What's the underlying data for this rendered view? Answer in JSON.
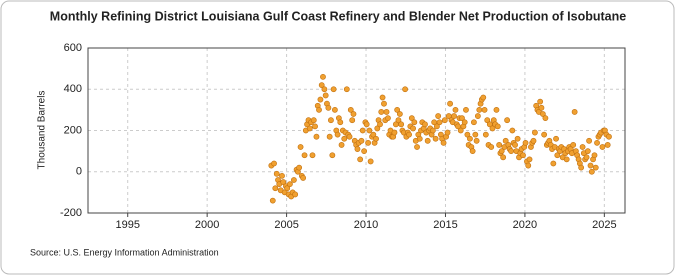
{
  "chart_data": {
    "type": "scatter",
    "title": "Monthly Refining District Louisiana Gulf Coast Refinery and Blender Net Production of Isobutane",
    "ylabel": "Thousand Barrels",
    "source": "Source: U.S. Energy Information Administration",
    "color": "#f0a030",
    "xlim": [
      1992.5,
      2026.3
    ],
    "xticks": [
      1995,
      2000,
      2005,
      2010,
      2015,
      2020,
      2025
    ],
    "ylim": [
      -200,
      600
    ],
    "yticks": [
      -200,
      0,
      200,
      400,
      600
    ],
    "grid": true,
    "x": [
      2004.04,
      2004.13,
      2004.21,
      2004.29,
      2004.38,
      2004.46,
      2004.54,
      2004.63,
      2004.71,
      2004.79,
      2004.88,
      2004.96,
      2005.04,
      2005.13,
      2005.21,
      2005.29,
      2005.38,
      2005.46,
      2005.54,
      2005.63,
      2005.71,
      2005.79,
      2005.88,
      2005.96,
      2006.04,
      2006.13,
      2006.21,
      2006.29,
      2006.38,
      2006.46,
      2006.54,
      2006.63,
      2006.71,
      2006.79,
      2006.88,
      2006.96,
      2007.04,
      2007.13,
      2007.21,
      2007.29,
      2007.38,
      2007.46,
      2007.54,
      2007.63,
      2007.71,
      2007.79,
      2007.88,
      2007.96,
      2008.04,
      2008.13,
      2008.21,
      2008.29,
      2008.38,
      2008.46,
      2008.54,
      2008.63,
      2008.71,
      2008.79,
      2008.88,
      2008.96,
      2009.04,
      2009.13,
      2009.21,
      2009.29,
      2009.38,
      2009.46,
      2009.54,
      2009.63,
      2009.71,
      2009.79,
      2009.88,
      2009.96,
      2010.04,
      2010.13,
      2010.21,
      2010.29,
      2010.38,
      2010.46,
      2010.54,
      2010.63,
      2010.71,
      2010.79,
      2010.88,
      2010.96,
      2011.04,
      2011.13,
      2011.21,
      2011.29,
      2011.38,
      2011.46,
      2011.54,
      2011.63,
      2011.71,
      2011.79,
      2011.88,
      2011.96,
      2012.04,
      2012.13,
      2012.21,
      2012.29,
      2012.38,
      2012.46,
      2012.54,
      2012.63,
      2012.71,
      2012.79,
      2012.88,
      2012.96,
      2013.04,
      2013.13,
      2013.21,
      2013.29,
      2013.38,
      2013.46,
      2013.54,
      2013.63,
      2013.71,
      2013.79,
      2013.88,
      2013.96,
      2014.04,
      2014.13,
      2014.21,
      2014.29,
      2014.38,
      2014.46,
      2014.54,
      2014.63,
      2014.71,
      2014.79,
      2014.88,
      2014.96,
      2015.04,
      2015.13,
      2015.21,
      2015.29,
      2015.38,
      2015.46,
      2015.54,
      2015.63,
      2015.71,
      2015.79,
      2015.88,
      2015.96,
      2016.04,
      2016.13,
      2016.21,
      2016.29,
      2016.38,
      2016.46,
      2016.54,
      2016.63,
      2016.71,
      2016.79,
      2016.88,
      2016.96,
      2017.04,
      2017.13,
      2017.21,
      2017.29,
      2017.38,
      2017.46,
      2017.54,
      2017.63,
      2017.71,
      2017.79,
      2017.88,
      2017.96,
      2018.04,
      2018.13,
      2018.21,
      2018.29,
      2018.38,
      2018.46,
      2018.54,
      2018.63,
      2018.71,
      2018.79,
      2018.88,
      2018.96,
      2019.04,
      2019.13,
      2019.21,
      2019.29,
      2019.38,
      2019.46,
      2019.54,
      2019.63,
      2019.71,
      2019.79,
      2019.88,
      2019.96,
      2020.04,
      2020.13,
      2020.21,
      2020.29,
      2020.38,
      2020.46,
      2020.54,
      2020.63,
      2020.71,
      2020.79,
      2020.88,
      2020.96,
      2021.04,
      2021.13,
      2021.21,
      2021.29,
      2021.38,
      2021.46,
      2021.54,
      2021.63,
      2021.71,
      2021.79,
      2021.88,
      2021.96,
      2022.04,
      2022.13,
      2022.21,
      2022.29,
      2022.38,
      2022.46,
      2022.54,
      2022.63,
      2022.71,
      2022.79,
      2022.88,
      2022.96,
      2023.04,
      2023.13,
      2023.21,
      2023.29,
      2023.38,
      2023.46,
      2023.54,
      2023.63,
      2023.71,
      2023.79,
      2023.88,
      2023.96,
      2024.04,
      2024.13,
      2024.21,
      2024.29,
      2024.38,
      2024.46,
      2024.54,
      2024.63,
      2024.71,
      2024.79,
      2024.88,
      2024.96,
      2025.04,
      2025.13,
      2025.21,
      2025.29
    ],
    "values": [
      30,
      -140,
      40,
      -80,
      -10,
      -40,
      -60,
      -90,
      -20,
      -50,
      -100,
      -70,
      -80,
      -110,
      -60,
      -120,
      -100,
      -40,
      -110,
      10,
      0,
      20,
      120,
      -20,
      -30,
      80,
      200,
      230,
      250,
      210,
      240,
      80,
      250,
      220,
      170,
      320,
      300,
      350,
      420,
      460,
      400,
      370,
      330,
      310,
      170,
      250,
      80,
      400,
      300,
      200,
      180,
      260,
      240,
      130,
      200,
      160,
      190,
      400,
      180,
      170,
      300,
      250,
      280,
      150,
      130,
      110,
      140,
      60,
      150,
      200,
      100,
      240,
      230,
      140,
      200,
      50,
      170,
      180,
      140,
      160,
      210,
      250,
      230,
      290,
      360,
      330,
      250,
      290,
      260,
      180,
      200,
      170,
      170,
      190,
      230,
      300,
      250,
      280,
      230,
      200,
      190,
      400,
      170,
      190,
      180,
      220,
      260,
      210,
      240,
      150,
      120,
      180,
      160,
      200,
      240,
      210,
      230,
      190,
      150,
      200,
      210,
      180,
      200,
      240,
      160,
      220,
      270,
      240,
      180,
      160,
      140,
      250,
      170,
      190,
      270,
      330,
      250,
      240,
      270,
      300,
      230,
      220,
      260,
      200,
      260,
      220,
      240,
      300,
      180,
      130,
      160,
      120,
      100,
      240,
      180,
      150,
      270,
      300,
      330,
      350,
      360,
      300,
      180,
      250,
      130,
      230,
      120,
      210,
      250,
      230,
      300,
      220,
      130,
      90,
      100,
      70,
      120,
      150,
      250,
      130,
      110,
      100,
      200,
      140,
      130,
      100,
      160,
      70,
      90,
      110,
      80,
      120,
      140,
      50,
      30,
      60,
      120,
      140,
      150,
      190,
      320,
      300,
      290,
      340,
      310,
      280,
      180,
      260,
      130,
      140,
      150,
      130,
      110,
      40,
      120,
      160,
      80,
      110,
      100,
      120,
      70,
      110,
      90,
      60,
      100,
      120,
      110,
      90,
      130,
      290,
      100,
      80,
      60,
      40,
      20,
      120,
      90,
      60,
      70,
      100,
      150,
      30,
      0,
      60,
      80,
      20,
      140,
      170,
      180,
      190,
      120,
      200,
      200,
      180,
      130,
      170
    ]
  }
}
